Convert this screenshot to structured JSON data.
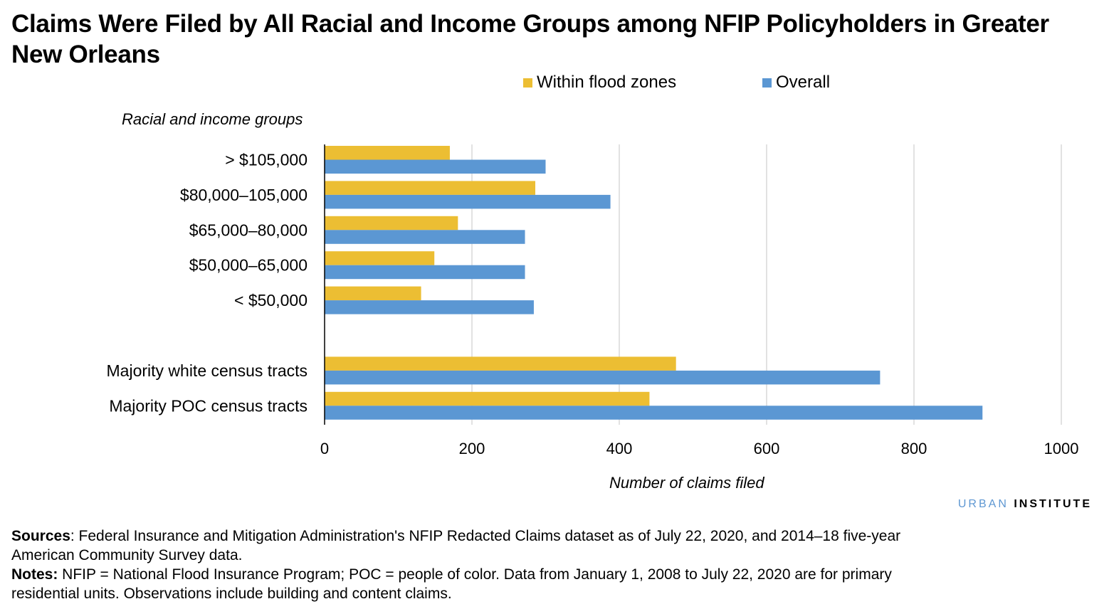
{
  "chart_data": {
    "type": "bar",
    "orientation": "horizontal",
    "title": "Claims Were Filed by All Racial and Income Groups among NFIP Policyholders in Greater New Orleans",
    "ylabel": "Racial and income groups",
    "xlabel": "Number of claims filed",
    "categories": [
      "> $105,000",
      "$80,000–105,000",
      "$65,000–80,000",
      "$50,000–65,000",
      "< $50,000",
      "Majority white census tracts",
      "Majority POC census tracts"
    ],
    "series": [
      {
        "name": "Within flood zones",
        "color": "#ecbe33",
        "values": [
          170,
          286,
          181,
          149,
          131,
          477,
          441
        ]
      },
      {
        "name": "Overall",
        "color": "#5b97d3",
        "values": [
          300,
          388,
          272,
          272,
          284,
          754,
          893
        ]
      }
    ],
    "xlim": [
      0,
      1000
    ],
    "xticks": [
      "0",
      "200",
      "400",
      "600",
      "800",
      "1000"
    ],
    "grid": true,
    "legend_position": "top"
  },
  "branding": {
    "urban": "URBAN",
    "institute": "INSTITUTE"
  },
  "footer": {
    "sources_label": "Sources",
    "sources_text": ": Federal Insurance and Mitigation Administration's NFIP Redacted Claims dataset as of July 22, 2020, and 2014–18 five-year American Community Survey data.",
    "notes_label": "Notes:",
    "notes_text": " NFIP = National Flood Insurance Program; POC = people of color. Data from January 1, 2008 to July 22, 2020 are for primary residential units. Observations include building and content claims."
  }
}
